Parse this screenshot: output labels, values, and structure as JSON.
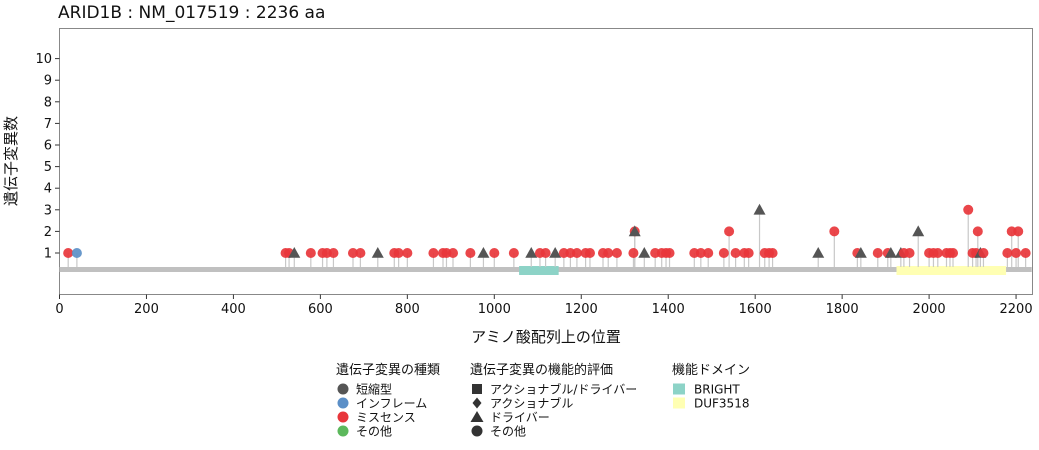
{
  "chart_data": {
    "type": "lollipop",
    "title": "ARID1B : NM_017519 : 2236 aa",
    "xlabel": "アミノ酸配列上の位置",
    "ylabel": "遺伝子変異数",
    "xlim": [
      0,
      2236
    ],
    "ylim": [
      0,
      10
    ],
    "x_ticks": [
      "0",
      "200",
      "400",
      "600",
      "800",
      "1000",
      "1200",
      "1400",
      "1600",
      "1800",
      "2000",
      "2200"
    ],
    "y_ticks": [
      "1",
      "2",
      "3",
      "4",
      "5",
      "6",
      "7",
      "8",
      "9",
      "10"
    ],
    "grid": false,
    "legend_position": "bottom",
    "protein_length": 2236,
    "domains": [
      {
        "name": "BRIGHT",
        "start": 1057,
        "end": 1148,
        "color": "#8dd3c7"
      },
      {
        "name": "DUF3518",
        "start": 1925,
        "end": 2177,
        "color": "#ffffb3"
      }
    ],
    "mutation_type_colors": {
      "短縮型": "#555555",
      "インフレーム": "#5b8fc7",
      "ミスセンス": "#e8363b",
      "その他": "#5cb85c"
    },
    "mutations": [
      {
        "pos": 20,
        "count": 1,
        "type": "ミスセンス",
        "shape": "circle"
      },
      {
        "pos": 40,
        "count": 1,
        "type": "インフレーム",
        "shape": "circle"
      },
      {
        "pos": 520,
        "count": 1,
        "type": "ミスセンス",
        "shape": "circle"
      },
      {
        "pos": 528,
        "count": 1,
        "type": "ミスセンス",
        "shape": "circle"
      },
      {
        "pos": 540,
        "count": 1,
        "type": "短縮型",
        "shape": "triangle"
      },
      {
        "pos": 578,
        "count": 1,
        "type": "ミスセンス",
        "shape": "circle"
      },
      {
        "pos": 605,
        "count": 1,
        "type": "ミスセンス",
        "shape": "circle"
      },
      {
        "pos": 615,
        "count": 1,
        "type": "ミスセンス",
        "shape": "circle"
      },
      {
        "pos": 630,
        "count": 1,
        "type": "ミスセンス",
        "shape": "circle"
      },
      {
        "pos": 675,
        "count": 1,
        "type": "ミスセンス",
        "shape": "circle"
      },
      {
        "pos": 692,
        "count": 1,
        "type": "ミスセンス",
        "shape": "circle"
      },
      {
        "pos": 732,
        "count": 1,
        "type": "短縮型",
        "shape": "triangle"
      },
      {
        "pos": 770,
        "count": 1,
        "type": "ミスセンス",
        "shape": "circle"
      },
      {
        "pos": 780,
        "count": 1,
        "type": "ミスセンス",
        "shape": "circle"
      },
      {
        "pos": 800,
        "count": 1,
        "type": "ミスセンス",
        "shape": "circle"
      },
      {
        "pos": 860,
        "count": 1,
        "type": "ミスセンス",
        "shape": "circle"
      },
      {
        "pos": 882,
        "count": 1,
        "type": "ミスセンス",
        "shape": "circle"
      },
      {
        "pos": 890,
        "count": 1,
        "type": "ミスセンス",
        "shape": "circle"
      },
      {
        "pos": 905,
        "count": 1,
        "type": "ミスセンス",
        "shape": "circle"
      },
      {
        "pos": 945,
        "count": 1,
        "type": "ミスセンス",
        "shape": "circle"
      },
      {
        "pos": 975,
        "count": 1,
        "type": "短縮型",
        "shape": "triangle"
      },
      {
        "pos": 1000,
        "count": 1,
        "type": "ミスセンス",
        "shape": "circle"
      },
      {
        "pos": 1045,
        "count": 1,
        "type": "ミスセンス",
        "shape": "circle"
      },
      {
        "pos": 1085,
        "count": 1,
        "type": "短縮型",
        "shape": "triangle"
      },
      {
        "pos": 1105,
        "count": 1,
        "type": "ミスセンス",
        "shape": "circle"
      },
      {
        "pos": 1118,
        "count": 1,
        "type": "ミスセンス",
        "shape": "circle"
      },
      {
        "pos": 1140,
        "count": 1,
        "type": "短縮型",
        "shape": "triangle"
      },
      {
        "pos": 1160,
        "count": 1,
        "type": "ミスセンス",
        "shape": "circle"
      },
      {
        "pos": 1175,
        "count": 1,
        "type": "ミスセンス",
        "shape": "circle"
      },
      {
        "pos": 1190,
        "count": 1,
        "type": "ミスセンス",
        "shape": "circle"
      },
      {
        "pos": 1210,
        "count": 1,
        "type": "ミスセンス",
        "shape": "circle"
      },
      {
        "pos": 1220,
        "count": 1,
        "type": "ミスセンス",
        "shape": "circle"
      },
      {
        "pos": 1250,
        "count": 1,
        "type": "ミスセンス",
        "shape": "circle"
      },
      {
        "pos": 1262,
        "count": 1,
        "type": "ミスセンス",
        "shape": "circle"
      },
      {
        "pos": 1282,
        "count": 1,
        "type": "ミスセンス",
        "shape": "circle"
      },
      {
        "pos": 1320,
        "count": 1,
        "type": "ミスセンス",
        "shape": "circle"
      },
      {
        "pos": 1323,
        "count": 2,
        "type": "ミスセンス",
        "shape": "circle"
      },
      {
        "pos": 1323,
        "count": 2,
        "type": "短縮型",
        "shape": "triangle"
      },
      {
        "pos": 1345,
        "count": 1,
        "type": "短縮型",
        "shape": "triangle"
      },
      {
        "pos": 1370,
        "count": 1,
        "type": "ミスセンス",
        "shape": "circle"
      },
      {
        "pos": 1385,
        "count": 1,
        "type": "ミスセンス",
        "shape": "circle"
      },
      {
        "pos": 1395,
        "count": 1,
        "type": "ミスセンス",
        "shape": "circle"
      },
      {
        "pos": 1403,
        "count": 1,
        "type": "ミスセンス",
        "shape": "circle"
      },
      {
        "pos": 1460,
        "count": 1,
        "type": "ミスセンス",
        "shape": "circle"
      },
      {
        "pos": 1475,
        "count": 1,
        "type": "ミスセンス",
        "shape": "circle"
      },
      {
        "pos": 1492,
        "count": 1,
        "type": "ミスセンス",
        "shape": "circle"
      },
      {
        "pos": 1528,
        "count": 1,
        "type": "ミスセンス",
        "shape": "circle"
      },
      {
        "pos": 1540,
        "count": 2,
        "type": "ミスセンス",
        "shape": "circle"
      },
      {
        "pos": 1555,
        "count": 1,
        "type": "ミスセンス",
        "shape": "circle"
      },
      {
        "pos": 1575,
        "count": 1,
        "type": "ミスセンス",
        "shape": "circle"
      },
      {
        "pos": 1585,
        "count": 1,
        "type": "ミスセンス",
        "shape": "circle"
      },
      {
        "pos": 1610,
        "count": 3,
        "type": "短縮型",
        "shape": "triangle"
      },
      {
        "pos": 1622,
        "count": 1,
        "type": "ミスセンス",
        "shape": "circle"
      },
      {
        "pos": 1632,
        "count": 1,
        "type": "ミスセンス",
        "shape": "circle"
      },
      {
        "pos": 1640,
        "count": 1,
        "type": "ミスセンス",
        "shape": "circle"
      },
      {
        "pos": 1745,
        "count": 1,
        "type": "短縮型",
        "shape": "triangle"
      },
      {
        "pos": 1782,
        "count": 2,
        "type": "ミスセンス",
        "shape": "circle"
      },
      {
        "pos": 1835,
        "count": 1,
        "type": "ミスセンス",
        "shape": "circle"
      },
      {
        "pos": 1843,
        "count": 1,
        "type": "短縮型",
        "shape": "triangle"
      },
      {
        "pos": 1882,
        "count": 1,
        "type": "ミスセンス",
        "shape": "circle"
      },
      {
        "pos": 1905,
        "count": 1,
        "type": "ミスセンス",
        "shape": "circle"
      },
      {
        "pos": 1912,
        "count": 1,
        "type": "短縮型",
        "shape": "triangle"
      },
      {
        "pos": 1935,
        "count": 1,
        "type": "短縮型",
        "shape": "triangle"
      },
      {
        "pos": 1942,
        "count": 1,
        "type": "ミスセンス",
        "shape": "circle"
      },
      {
        "pos": 1955,
        "count": 1,
        "type": "ミスセンス",
        "shape": "circle"
      },
      {
        "pos": 1975,
        "count": 2,
        "type": "短縮型",
        "shape": "triangle"
      },
      {
        "pos": 2000,
        "count": 1,
        "type": "ミスセンス",
        "shape": "circle"
      },
      {
        "pos": 2010,
        "count": 1,
        "type": "ミスセンス",
        "shape": "circle"
      },
      {
        "pos": 2020,
        "count": 1,
        "type": "ミスセンス",
        "shape": "circle"
      },
      {
        "pos": 2040,
        "count": 1,
        "type": "ミスセンス",
        "shape": "circle"
      },
      {
        "pos": 2048,
        "count": 1,
        "type": "ミスセンス",
        "shape": "circle"
      },
      {
        "pos": 2055,
        "count": 1,
        "type": "ミスセンス",
        "shape": "circle"
      },
      {
        "pos": 2090,
        "count": 3,
        "type": "ミスセンス",
        "shape": "circle"
      },
      {
        "pos": 2100,
        "count": 1,
        "type": "ミスセンス",
        "shape": "circle"
      },
      {
        "pos": 2108,
        "count": 1,
        "type": "ミスセンス",
        "shape": "circle"
      },
      {
        "pos": 2112,
        "count": 2,
        "type": "ミスセンス",
        "shape": "circle"
      },
      {
        "pos": 2118,
        "count": 1,
        "type": "短縮型",
        "shape": "triangle"
      },
      {
        "pos": 2125,
        "count": 1,
        "type": "ミスセンス",
        "shape": "circle"
      },
      {
        "pos": 2180,
        "count": 1,
        "type": "ミスセンス",
        "shape": "circle"
      },
      {
        "pos": 2190,
        "count": 2,
        "type": "ミスセンス",
        "shape": "circle"
      },
      {
        "pos": 2200,
        "count": 1,
        "type": "ミスセンス",
        "shape": "circle"
      },
      {
        "pos": 2205,
        "count": 2,
        "type": "ミスセンス",
        "shape": "circle"
      },
      {
        "pos": 2222,
        "count": 1,
        "type": "ミスセンス",
        "shape": "circle"
      }
    ],
    "legend": {
      "type_title": "遺伝子変異の種類",
      "type_items": [
        {
          "label": "短縮型",
          "color": "#555555"
        },
        {
          "label": "インフレーム",
          "color": "#5b8fc7"
        },
        {
          "label": "ミスセンス",
          "color": "#e8363b"
        },
        {
          "label": "その他",
          "color": "#5cb85c"
        }
      ],
      "function_title": "遺伝子変異の機能的評価",
      "function_items": [
        {
          "label": "アクショナブル/ドライバー",
          "shape": "square"
        },
        {
          "label": "アクショナブル",
          "shape": "diamond"
        },
        {
          "label": "ドライバー",
          "shape": "triangle"
        },
        {
          "label": "その他",
          "shape": "circle"
        }
      ],
      "domain_title": "機能ドメイン",
      "domain_items": [
        {
          "label": "BRIGHT",
          "color": "#8dd3c7"
        },
        {
          "label": "DUF3518",
          "color": "#ffffb3"
        }
      ]
    }
  }
}
